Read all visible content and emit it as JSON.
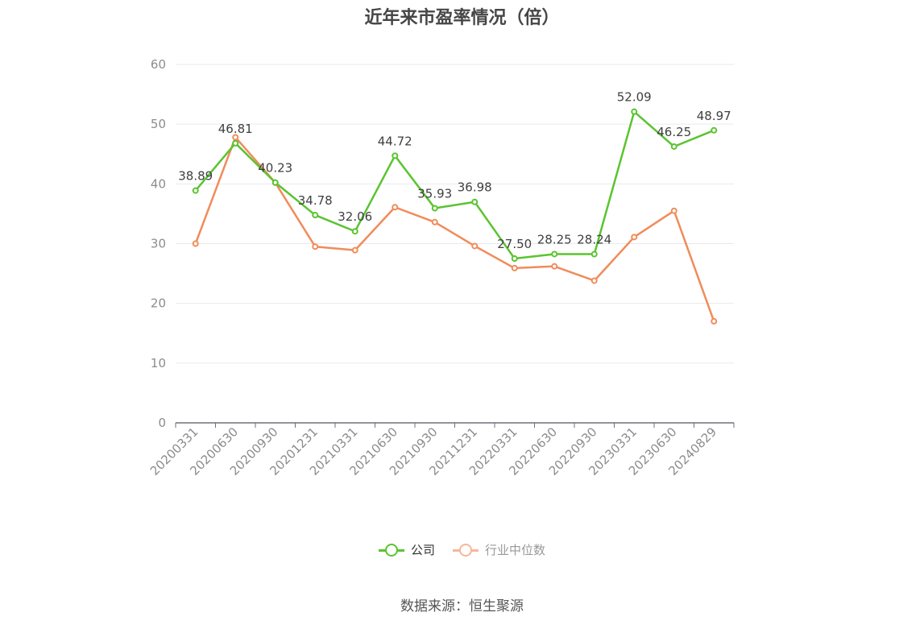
{
  "chart_data": {
    "type": "line",
    "title": "近年来市盈率情况（倍）",
    "categories": [
      "20200331",
      "20200630",
      "20200930",
      "20201231",
      "20210331",
      "20210630",
      "20210930",
      "20211231",
      "20220331",
      "20220630",
      "20220930",
      "20230331",
      "20230630",
      "20240829"
    ],
    "series": [
      {
        "name": "公司",
        "color": "#5ac42f",
        "values": [
          38.89,
          46.81,
          40.23,
          34.78,
          32.06,
          44.72,
          35.93,
          36.98,
          27.5,
          28.25,
          28.24,
          52.09,
          46.25,
          48.97
        ],
        "labels": [
          "38.89",
          "46.81",
          "40.23",
          "34.78",
          "32.06",
          "44.72",
          "35.93",
          "36.98",
          "27.50",
          "28.25",
          "28.24",
          "52.09",
          "46.25",
          "48.97"
        ]
      },
      {
        "name": "行业中位数",
        "color": "#f08c5a",
        "values": [
          30.0,
          47.8,
          40.2,
          29.5,
          28.9,
          36.1,
          33.6,
          29.6,
          25.9,
          26.2,
          23.8,
          31.1,
          35.5,
          17.0
        ]
      }
    ],
    "ylim": [
      0,
      60
    ],
    "yticks": [
      0,
      10,
      20,
      30,
      40,
      50,
      60
    ],
    "xlabel": "",
    "ylabel": "",
    "grid": true,
    "legend_position": "bottom-center"
  },
  "legend": {
    "company": "公司",
    "industry": "行业中位数"
  },
  "source": "数据来源：恒生聚源",
  "colors": {
    "company": "#5ac42f",
    "industry": "#f08c5a",
    "industry_legend": "#f7b69a",
    "grid": "#e6e9f0",
    "axis": "#6e7079"
  }
}
